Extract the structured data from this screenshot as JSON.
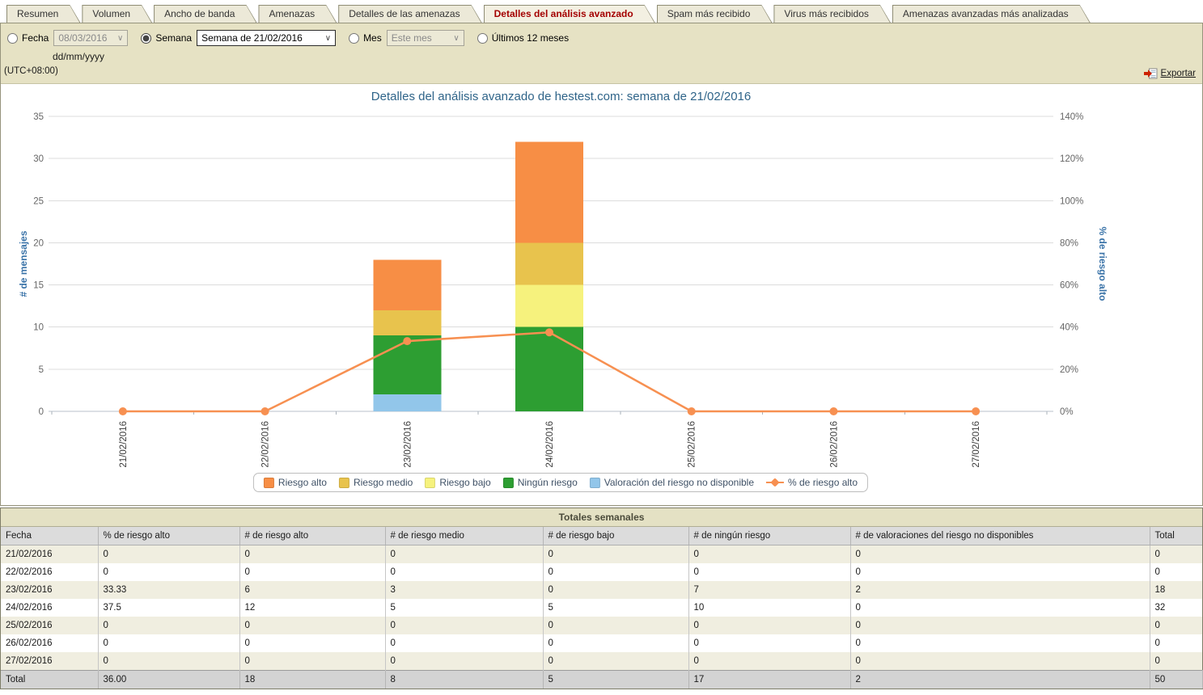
{
  "tabs": [
    {
      "label": "Resumen",
      "active": false
    },
    {
      "label": "Volumen",
      "active": false
    },
    {
      "label": "Ancho de banda",
      "active": false
    },
    {
      "label": "Amenazas",
      "active": false
    },
    {
      "label": "Detalles de las amenazas",
      "active": false
    },
    {
      "label": "Detalles del análisis avanzado",
      "active": true
    },
    {
      "label": "Spam más recibido",
      "active": false
    },
    {
      "label": "Virus más recibidos",
      "active": false
    },
    {
      "label": "Amenazas avanzadas más analizadas",
      "active": false
    }
  ],
  "toolbar": {
    "periods": [
      {
        "label": "Fecha",
        "value": "08/03/2016",
        "selected": false,
        "disabled": true
      },
      {
        "label": "Semana",
        "value": "Semana de 21/02/2016",
        "selected": true,
        "disabled": false
      },
      {
        "label": "Mes",
        "value": "Este mes",
        "selected": false,
        "disabled": true
      },
      {
        "label": "Últimos 12 meses",
        "selected": false
      }
    ],
    "date_format_hint": "dd/mm/yyyy",
    "timezone": "(UTC+08:00)",
    "export_label": "Exportar"
  },
  "chart_data": {
    "type": "bar",
    "subtype": "stacked-bars-with-line",
    "title": "Detalles del análisis avanzado de hestest.com: semana de 21/02/2016",
    "categories": [
      "21/02/2016",
      "22/02/2016",
      "23/02/2016",
      "24/02/2016",
      "25/02/2016",
      "26/02/2016",
      "27/02/2016"
    ],
    "series": [
      {
        "name": "Valoración del riesgo no disponible",
        "color": "#92C6EA",
        "values": [
          0,
          0,
          2,
          0,
          0,
          0,
          0
        ]
      },
      {
        "name": "Ningún riesgo",
        "color": "#2D9E32",
        "values": [
          0,
          0,
          7,
          10,
          0,
          0,
          0
        ]
      },
      {
        "name": "Riesgo bajo",
        "color": "#F6F27D",
        "values": [
          0,
          0,
          0,
          5,
          0,
          0,
          0
        ]
      },
      {
        "name": "Riesgo medio",
        "color": "#E8C34D",
        "values": [
          0,
          0,
          3,
          5,
          0,
          0,
          0
        ]
      },
      {
        "name": "Riesgo alto",
        "color": "#F78E45",
        "values": [
          0,
          0,
          6,
          12,
          0,
          0,
          0
        ]
      }
    ],
    "line_series": {
      "name": "% de riesgo alto",
      "color": "#F79051",
      "values": [
        0,
        0,
        33.33,
        37.5,
        0,
        0,
        0
      ]
    },
    "ylabel_left": "# de mensajes",
    "ylabel_right": "% de riesgo alto",
    "ylim_left": [
      0,
      35
    ],
    "ylim_right": [
      0,
      140
    ],
    "left_ticks": [
      0,
      5,
      10,
      15,
      20,
      25,
      30,
      35
    ],
    "right_ticks": [
      "0%",
      "20%",
      "40%",
      "60%",
      "80%",
      "100%",
      "120%",
      "140%"
    ],
    "grid": true,
    "legend_position": "bottom"
  },
  "legend": {
    "items": [
      {
        "label": "Riesgo alto",
        "color": "#F78E45",
        "type": "box"
      },
      {
        "label": "Riesgo medio",
        "color": "#E8C34D",
        "type": "box"
      },
      {
        "label": "Riesgo bajo",
        "color": "#F6F27D",
        "type": "box"
      },
      {
        "label": "Ningún riesgo",
        "color": "#2D9E32",
        "type": "box"
      },
      {
        "label": "Valoración del riesgo no disponible",
        "color": "#92C6EA",
        "type": "box"
      },
      {
        "label": "% de riesgo alto",
        "color": "#F79051",
        "type": "line"
      }
    ]
  },
  "table": {
    "title": "Totales semanales",
    "columns": [
      "Fecha",
      "% de riesgo alto",
      "# de riesgo alto",
      "# de riesgo medio",
      "# de riesgo bajo",
      "# de ningún riesgo",
      "# de valoraciones del riesgo no disponibles",
      "Total"
    ],
    "rows": [
      [
        "21/02/2016",
        "0",
        "0",
        "0",
        "0",
        "0",
        "0",
        "0"
      ],
      [
        "22/02/2016",
        "0",
        "0",
        "0",
        "0",
        "0",
        "0",
        "0"
      ],
      [
        "23/02/2016",
        "33.33",
        "6",
        "3",
        "0",
        "7",
        "2",
        "18"
      ],
      [
        "24/02/2016",
        "37.5",
        "12",
        "5",
        "5",
        "10",
        "0",
        "32"
      ],
      [
        "25/02/2016",
        "0",
        "0",
        "0",
        "0",
        "0",
        "0",
        "0"
      ],
      [
        "26/02/2016",
        "0",
        "0",
        "0",
        "0",
        "0",
        "0",
        "0"
      ],
      [
        "27/02/2016",
        "0",
        "0",
        "0",
        "0",
        "0",
        "0",
        "0"
      ]
    ],
    "total_row": [
      "Total",
      "36.00",
      "18",
      "8",
      "5",
      "17",
      "2",
      "50"
    ]
  }
}
